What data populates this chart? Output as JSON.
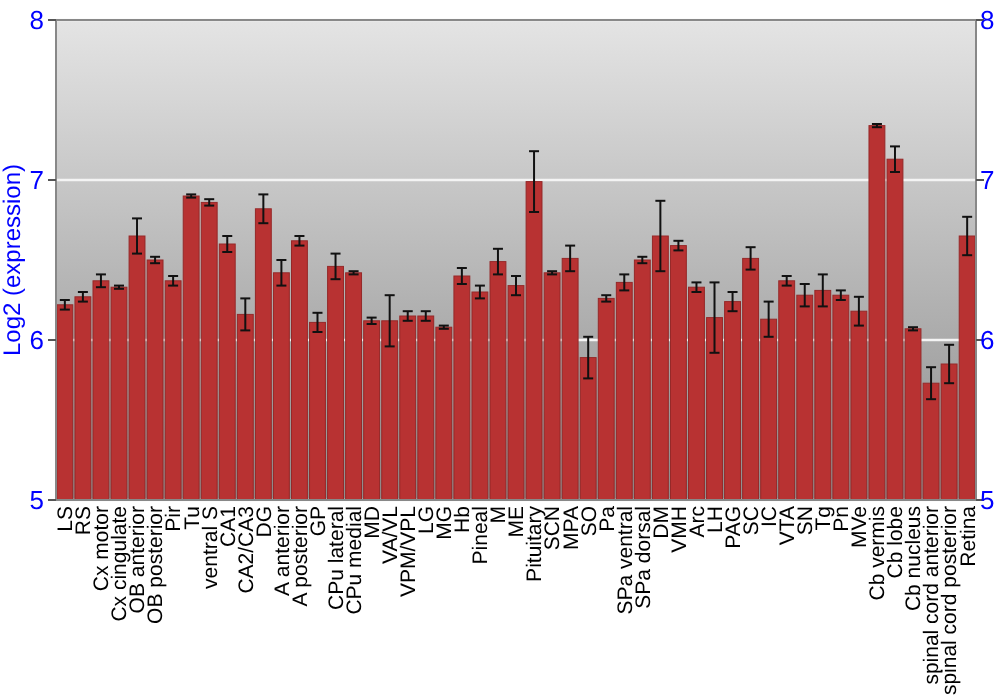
{
  "chart_data": {
    "type": "bar",
    "ylabel": "Log2 (expression)",
    "categories": [
      "LS",
      "RS",
      "Cx motor",
      "Cx cingulate",
      "OB anterior",
      "OB posterior",
      "Pir",
      "Tu",
      "ventral S",
      "CA1",
      "CA2/CA3",
      "DG",
      "A anterior",
      "A posterior",
      "GP",
      "CPu lateral",
      "CPu medial",
      "MD",
      "VA/VL",
      "VPM/VPL",
      "LG",
      "MG",
      "Hb",
      "Pineal",
      "M",
      "ME",
      "Pituitary",
      "SCN",
      "MPA",
      "SO",
      "Pa",
      "SPa ventral",
      "SPa dorsal",
      "DM",
      "VMH",
      "Arc",
      "LH",
      "PAG",
      "SC",
      "IC",
      "VTA",
      "SN",
      "Tg",
      "Pn",
      "MVe",
      "Cb vermis",
      "Cb lobe",
      "Cb nucleus",
      "spinal cord anterior",
      "spinal cord posterior",
      "Retina"
    ],
    "values": [
      6.22,
      6.27,
      6.37,
      6.33,
      6.65,
      6.5,
      6.37,
      6.9,
      6.86,
      6.6,
      6.16,
      6.82,
      6.42,
      6.62,
      6.11,
      6.46,
      6.42,
      6.12,
      6.12,
      6.15,
      6.15,
      6.08,
      6.4,
      6.3,
      6.49,
      6.34,
      6.99,
      6.42,
      6.51,
      5.89,
      6.26,
      6.36,
      6.5,
      6.65,
      6.59,
      6.33,
      6.14,
      6.24,
      6.51,
      6.13,
      6.37,
      6.28,
      6.31,
      6.28,
      6.18,
      7.34,
      7.13,
      6.07,
      5.73,
      5.85,
      6.65
    ],
    "errors": [
      0.03,
      0.03,
      0.04,
      0.01,
      0.11,
      0.02,
      0.03,
      0.01,
      0.02,
      0.05,
      0.1,
      0.09,
      0.08,
      0.03,
      0.06,
      0.08,
      0.01,
      0.02,
      0.16,
      0.03,
      0.03,
      0.01,
      0.05,
      0.04,
      0.08,
      0.06,
      0.19,
      0.01,
      0.08,
      0.13,
      0.02,
      0.05,
      0.02,
      0.22,
      0.03,
      0.03,
      0.22,
      0.06,
      0.07,
      0.11,
      0.03,
      0.07,
      0.1,
      0.03,
      0.09,
      0.01,
      0.08,
      0.01,
      0.1,
      0.12,
      0.12
    ],
    "color": "#b83232",
    "ylim": [
      5,
      8
    ],
    "yticks": [
      5,
      6,
      7,
      8
    ],
    "y2lim": [
      5,
      8
    ],
    "y2ticks": [
      5,
      6,
      7,
      8
    ],
    "grid": "y"
  }
}
